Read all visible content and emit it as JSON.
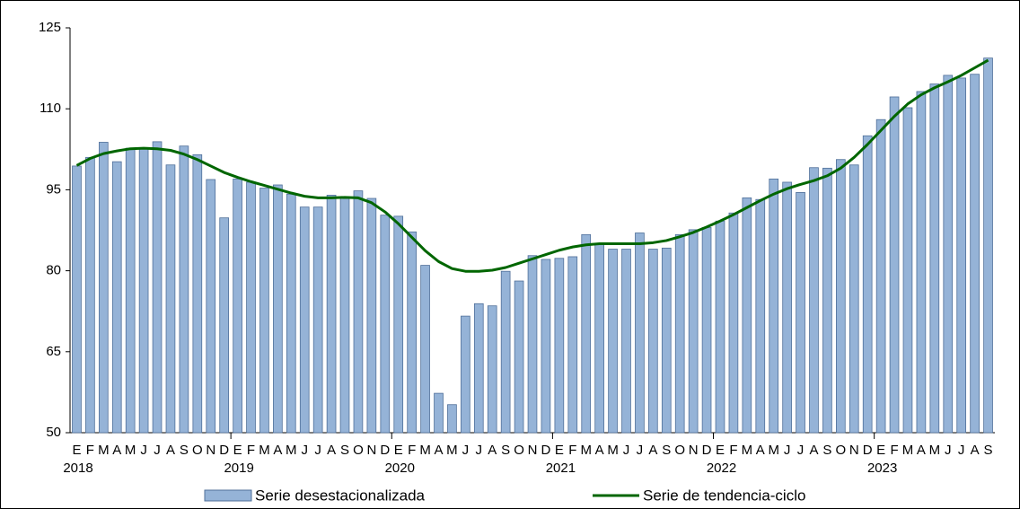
{
  "chart_data": {
    "type": "bar",
    "categories": [
      "E",
      "F",
      "M",
      "A",
      "M",
      "J",
      "J",
      "A",
      "S",
      "O",
      "N",
      "D",
      "E",
      "F",
      "M",
      "A",
      "M",
      "J",
      "J",
      "A",
      "S",
      "O",
      "N",
      "D",
      "E",
      "F",
      "M",
      "A",
      "M",
      "J",
      "J",
      "A",
      "S",
      "O",
      "N",
      "D",
      "E",
      "F",
      "M",
      "A",
      "M",
      "J",
      "J",
      "A",
      "S",
      "O",
      "N",
      "D",
      "E",
      "F",
      "M",
      "A",
      "M",
      "J",
      "J",
      "A",
      "S",
      "O",
      "N",
      "D",
      "E",
      "F",
      "M",
      "A",
      "M",
      "J",
      "J",
      "A",
      "S"
    ],
    "years": [
      "2018",
      "2019",
      "2020",
      "2021",
      "2022",
      "2023"
    ],
    "series": [
      {
        "name": "Serie desestacionalizada",
        "type": "bar",
        "color": "#95b3d7",
        "values": [
          99.4,
          101,
          103.8,
          100.2,
          102.7,
          102.7,
          103.9,
          99.6,
          103.1,
          101.5,
          96.9,
          89.8,
          97,
          96.4,
          95.3,
          95.9,
          94.2,
          91.8,
          91.8,
          94,
          93.7,
          94.8,
          93.4,
          90.3,
          90.1,
          87.2,
          81,
          57.3,
          55.2,
          71.6,
          73.9,
          73.5,
          79.9,
          78.1,
          82.8,
          82.1,
          82.3,
          82.6,
          86.7,
          85.1,
          84,
          84,
          87,
          84,
          84.2,
          86.7,
          87.6,
          88,
          89.2,
          90.7,
          93.5,
          93.2,
          97,
          96.4,
          94.5,
          99.1,
          99,
          100.6,
          99.6,
          105,
          108,
          112.2,
          110.2,
          113.2,
          114.6,
          116.2,
          115.7,
          116.4,
          119.4
        ]
      },
      {
        "name": "Serie de tendencia-ciclo",
        "type": "line",
        "color": "#006600",
        "values": [
          99.5,
          100.8,
          101.7,
          102.2,
          102.6,
          102.7,
          102.6,
          102.3,
          101.6,
          100.6,
          99.4,
          98.2,
          97.3,
          96.5,
          95.8,
          95.1,
          94.4,
          93.8,
          93.5,
          93.5,
          93.6,
          93.5,
          92.6,
          90.9,
          88.7,
          86.2,
          83.7,
          81.7,
          80.4,
          79.9,
          79.9,
          80.1,
          80.6,
          81.4,
          82.2,
          83.0,
          83.8,
          84.4,
          84.8,
          85.0,
          85.0,
          85.0,
          85.0,
          85.2,
          85.6,
          86.3,
          87.1,
          88.1,
          89.2,
          90.4,
          91.7,
          93.0,
          94.2,
          95.2,
          96.0,
          96.7,
          97.6,
          99.0,
          101.0,
          103.4,
          106.0,
          108.6,
          110.9,
          112.6,
          113.9,
          115.0,
          116.2,
          117.6,
          119.0
        ]
      }
    ],
    "ylim": [
      50,
      125
    ],
    "yticks": [
      50,
      65,
      80,
      95,
      110,
      125
    ],
    "legend": "bottom"
  }
}
